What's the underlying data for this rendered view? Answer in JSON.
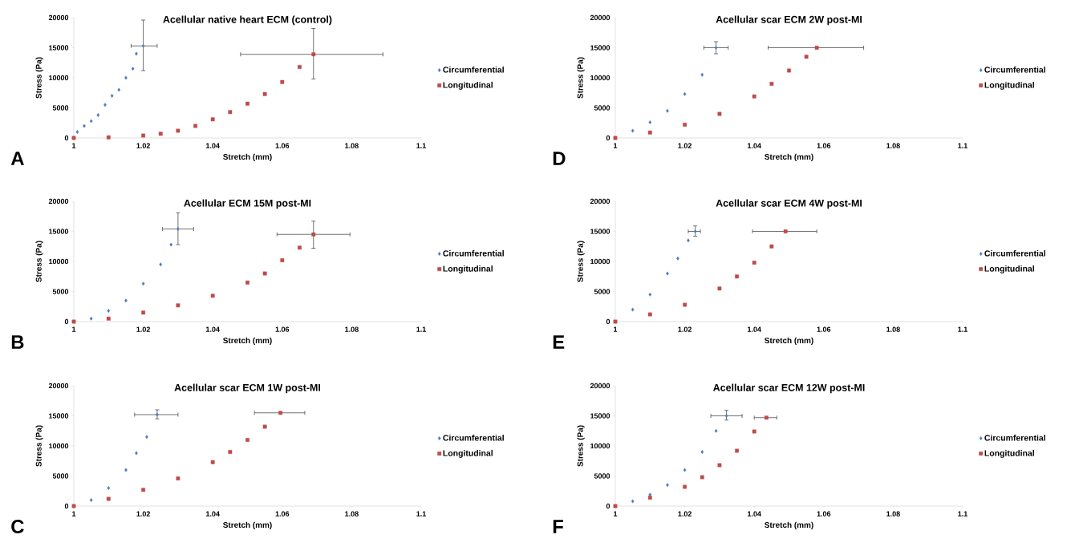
{
  "chart_data": [
    {
      "type": "scatter",
      "title": "Acellular native heart ECM (control)",
      "xlabel": "Stretch (mm)",
      "ylabel": "Stress (Pa)",
      "annotations": [
        "A"
      ],
      "xlim": [
        1,
        1.1
      ],
      "xticks": [
        1,
        1.02,
        1.04,
        1.06,
        1.08,
        1.1
      ],
      "ylim": [
        0,
        20000
      ],
      "yticks": [
        0,
        5000,
        10000,
        15000,
        20000
      ],
      "grid": false,
      "legend": "right",
      "series": [
        {
          "name": "Circumferential",
          "color": "#4a7ebb",
          "marker": "diamond",
          "x": [
            1,
            1.001,
            1.003,
            1.005,
            1.007,
            1.009,
            1.011,
            1.013,
            1.015,
            1.017,
            1.018,
            1.02
          ],
          "values": [
            0,
            1000,
            2000,
            2800,
            3800,
            5500,
            7000,
            8000,
            10000,
            11500,
            14000,
            15300
          ],
          "errors": [
            null,
            null,
            null,
            null,
            null,
            null,
            null,
            null,
            null,
            null,
            null,
            [
              11200,
              19600
            ]
          ],
          "xerrors": [
            null,
            null,
            null,
            null,
            null,
            null,
            null,
            null,
            null,
            null,
            null,
            [
              1.0165,
              1.024
            ]
          ]
        },
        {
          "name": "Longitudinal",
          "color": "#be4b48",
          "marker": "square",
          "x": [
            1,
            1.01,
            1.02,
            1.025,
            1.03,
            1.035,
            1.04,
            1.045,
            1.05,
            1.055,
            1.06,
            1.065,
            1.069
          ],
          "values": [
            0,
            100,
            400,
            700,
            1200,
            2000,
            3100,
            4300,
            5700,
            7300,
            9300,
            11800,
            13900
          ],
          "errors": [
            null,
            null,
            null,
            null,
            null,
            null,
            null,
            null,
            null,
            null,
            null,
            null,
            [
              9800,
              18200
            ]
          ],
          "xerrors": [
            null,
            null,
            null,
            null,
            null,
            null,
            null,
            null,
            null,
            null,
            null,
            null,
            [
              1.048,
              1.089
            ]
          ]
        }
      ]
    },
    {
      "type": "scatter",
      "title": "Acellular scar ECM 2W post-MI",
      "xlabel": "Stretch (mm)",
      "ylabel": "Stress (Pa)",
      "annotations": [
        "D"
      ],
      "xlim": [
        1,
        1.1
      ],
      "xticks": [
        1,
        1.02,
        1.04,
        1.06,
        1.08,
        1.1
      ],
      "ylim": [
        0,
        20000
      ],
      "yticks": [
        0,
        5000,
        10000,
        15000,
        20000
      ],
      "grid": false,
      "legend": "right",
      "series": [
        {
          "name": "Circumferential",
          "color": "#4a7ebb",
          "marker": "diamond",
          "x": [
            1,
            1.005,
            1.01,
            1.015,
            1.02,
            1.025,
            1.029
          ],
          "values": [
            0,
            1200,
            2600,
            4500,
            7300,
            10500,
            15000
          ],
          "errors": [
            null,
            null,
            null,
            null,
            null,
            null,
            [
              14000,
              16000
            ]
          ],
          "xerrors": [
            null,
            null,
            null,
            null,
            null,
            null,
            [
              1.0255,
              1.0325
            ]
          ]
        },
        {
          "name": "Longitudinal",
          "color": "#be4b48",
          "marker": "square",
          "x": [
            1,
            1.01,
            1.02,
            1.03,
            1.04,
            1.045,
            1.05,
            1.055,
            1.058
          ],
          "values": [
            0,
            900,
            2200,
            4000,
            6900,
            9000,
            11200,
            13500,
            15000
          ],
          "xerrors": [
            null,
            null,
            null,
            null,
            null,
            null,
            null,
            null,
            [
              1.044,
              1.0715
            ]
          ]
        }
      ]
    },
    {
      "type": "scatter",
      "title": "Acellular ECM 15M post-MI",
      "xlabel": "Stretch (mm)",
      "ylabel": "Stress (Pa)",
      "annotations": [
        "B"
      ],
      "xlim": [
        1,
        1.1
      ],
      "xticks": [
        1,
        1.02,
        1.04,
        1.06,
        1.08,
        1.1
      ],
      "ylim": [
        0,
        20000
      ],
      "yticks": [
        0,
        5000,
        10000,
        15000,
        20000
      ],
      "grid": false,
      "legend": "right",
      "series": [
        {
          "name": "Circumferential",
          "color": "#4a7ebb",
          "marker": "diamond",
          "x": [
            1,
            1.005,
            1.01,
            1.015,
            1.02,
            1.025,
            1.028,
            1.03
          ],
          "values": [
            0,
            500,
            1800,
            3500,
            6300,
            9500,
            12800,
            15400
          ],
          "errors": [
            null,
            null,
            null,
            null,
            null,
            null,
            null,
            [
              12800,
              18100
            ]
          ],
          "xerrors": [
            null,
            null,
            null,
            null,
            null,
            null,
            null,
            [
              1.0255,
              1.0345
            ]
          ]
        },
        {
          "name": "Longitudinal",
          "color": "#be4b48",
          "marker": "square",
          "x": [
            1,
            1.01,
            1.02,
            1.03,
            1.04,
            1.05,
            1.055,
            1.06,
            1.065,
            1.069
          ],
          "values": [
            0,
            500,
            1500,
            2700,
            4300,
            6500,
            8000,
            10200,
            12300,
            14500
          ],
          "errors": [
            null,
            null,
            null,
            null,
            null,
            null,
            null,
            null,
            null,
            [
              12200,
              16700
            ]
          ],
          "xerrors": [
            null,
            null,
            null,
            null,
            null,
            null,
            null,
            null,
            null,
            [
              1.0585,
              1.0795
            ]
          ]
        }
      ]
    },
    {
      "type": "scatter",
      "title": "Acellular scar ECM 4W post-MI",
      "xlabel": "Stretch (mm)",
      "ylabel": "Stress (Pa)",
      "annotations": [
        "E"
      ],
      "xlim": [
        1,
        1.1
      ],
      "xticks": [
        1,
        1.02,
        1.04,
        1.06,
        1.08,
        1.1
      ],
      "ylim": [
        0,
        20000
      ],
      "yticks": [
        0,
        5000,
        10000,
        15000,
        20000
      ],
      "grid": false,
      "legend": "right",
      "series": [
        {
          "name": "Circumferential",
          "color": "#4a7ebb",
          "marker": "diamond",
          "x": [
            1,
            1.005,
            1.01,
            1.015,
            1.018,
            1.021,
            1.023
          ],
          "values": [
            0,
            2000,
            4500,
            8000,
            10500,
            13500,
            15000
          ],
          "errors": [
            null,
            null,
            null,
            null,
            null,
            null,
            [
              14200,
              15900
            ]
          ],
          "xerrors": [
            null,
            null,
            null,
            null,
            null,
            null,
            [
              1.021,
              1.0245
            ]
          ]
        },
        {
          "name": "Longitudinal",
          "color": "#be4b48",
          "marker": "square",
          "x": [
            1,
            1.01,
            1.02,
            1.03,
            1.035,
            1.04,
            1.045,
            1.049
          ],
          "values": [
            0,
            1200,
            2800,
            5500,
            7500,
            9800,
            12500,
            15000
          ],
          "xerrors": [
            null,
            null,
            null,
            null,
            null,
            null,
            null,
            [
              1.0395,
              1.058
            ]
          ]
        }
      ]
    },
    {
      "type": "scatter",
      "title": "Acellular scar ECM 1W post-MI",
      "xlabel": "Stretch (mm)",
      "ylabel": "Stress (Pa)",
      "annotations": [
        "C"
      ],
      "xlim": [
        1,
        1.1
      ],
      "xticks": [
        1,
        1.02,
        1.04,
        1.06,
        1.08,
        1.1
      ],
      "ylim": [
        0,
        20000
      ],
      "yticks": [
        0,
        5000,
        10000,
        15000,
        20000
      ],
      "grid": false,
      "legend": "right",
      "series": [
        {
          "name": "Circumferential",
          "color": "#4a7ebb",
          "marker": "diamond",
          "x": [
            1,
            1.005,
            1.01,
            1.015,
            1.018,
            1.021,
            1.024
          ],
          "values": [
            0,
            1000,
            3000,
            6000,
            8800,
            11500,
            15200
          ],
          "errors": [
            null,
            null,
            null,
            null,
            null,
            null,
            [
              14500,
              16000
            ]
          ],
          "xerrors": [
            null,
            null,
            null,
            null,
            null,
            null,
            [
              1.0175,
              1.03
            ]
          ]
        },
        {
          "name": "Longitudinal",
          "color": "#be4b48",
          "marker": "square",
          "x": [
            1,
            1.01,
            1.02,
            1.03,
            1.04,
            1.045,
            1.05,
            1.055,
            1.0595
          ],
          "values": [
            0,
            1200,
            2700,
            4600,
            7300,
            9000,
            11000,
            13200,
            15500
          ],
          "xerrors": [
            null,
            null,
            null,
            null,
            null,
            null,
            null,
            null,
            [
              1.052,
              1.0665
            ]
          ]
        }
      ]
    },
    {
      "type": "scatter",
      "title": "Acellular scar ECM 12W post-MI",
      "xlabel": "Stretch (mm)",
      "ylabel": "Stress (Pa)",
      "annotations": [
        "F"
      ],
      "xlim": [
        1,
        1.1
      ],
      "xticks": [
        1,
        1.02,
        1.04,
        1.06,
        1.08,
        1.1
      ],
      "ylim": [
        0,
        20000
      ],
      "yticks": [
        0,
        5000,
        10000,
        15000,
        20000
      ],
      "grid": false,
      "legend": "right",
      "series": [
        {
          "name": "Circumferential",
          "color": "#4a7ebb",
          "marker": "diamond",
          "x": [
            1,
            1.005,
            1.01,
            1.015,
            1.02,
            1.025,
            1.029,
            1.032
          ],
          "values": [
            0,
            800,
            1900,
            3500,
            6000,
            9000,
            12500,
            15000
          ],
          "errors": [
            null,
            null,
            null,
            null,
            null,
            null,
            null,
            [
              14300,
              15900
            ]
          ],
          "xerrors": [
            null,
            null,
            null,
            null,
            null,
            null,
            null,
            [
              1.0275,
              1.0365
            ]
          ]
        },
        {
          "name": "Longitudinal",
          "color": "#be4b48",
          "marker": "square",
          "x": [
            1,
            1.01,
            1.02,
            1.025,
            1.03,
            1.035,
            1.04,
            1.0435
          ],
          "values": [
            0,
            1400,
            3200,
            4800,
            6800,
            9200,
            12400,
            14700
          ],
          "xerrors": [
            null,
            null,
            null,
            null,
            null,
            null,
            null,
            [
              1.04,
              1.0465
            ]
          ]
        }
      ]
    }
  ]
}
